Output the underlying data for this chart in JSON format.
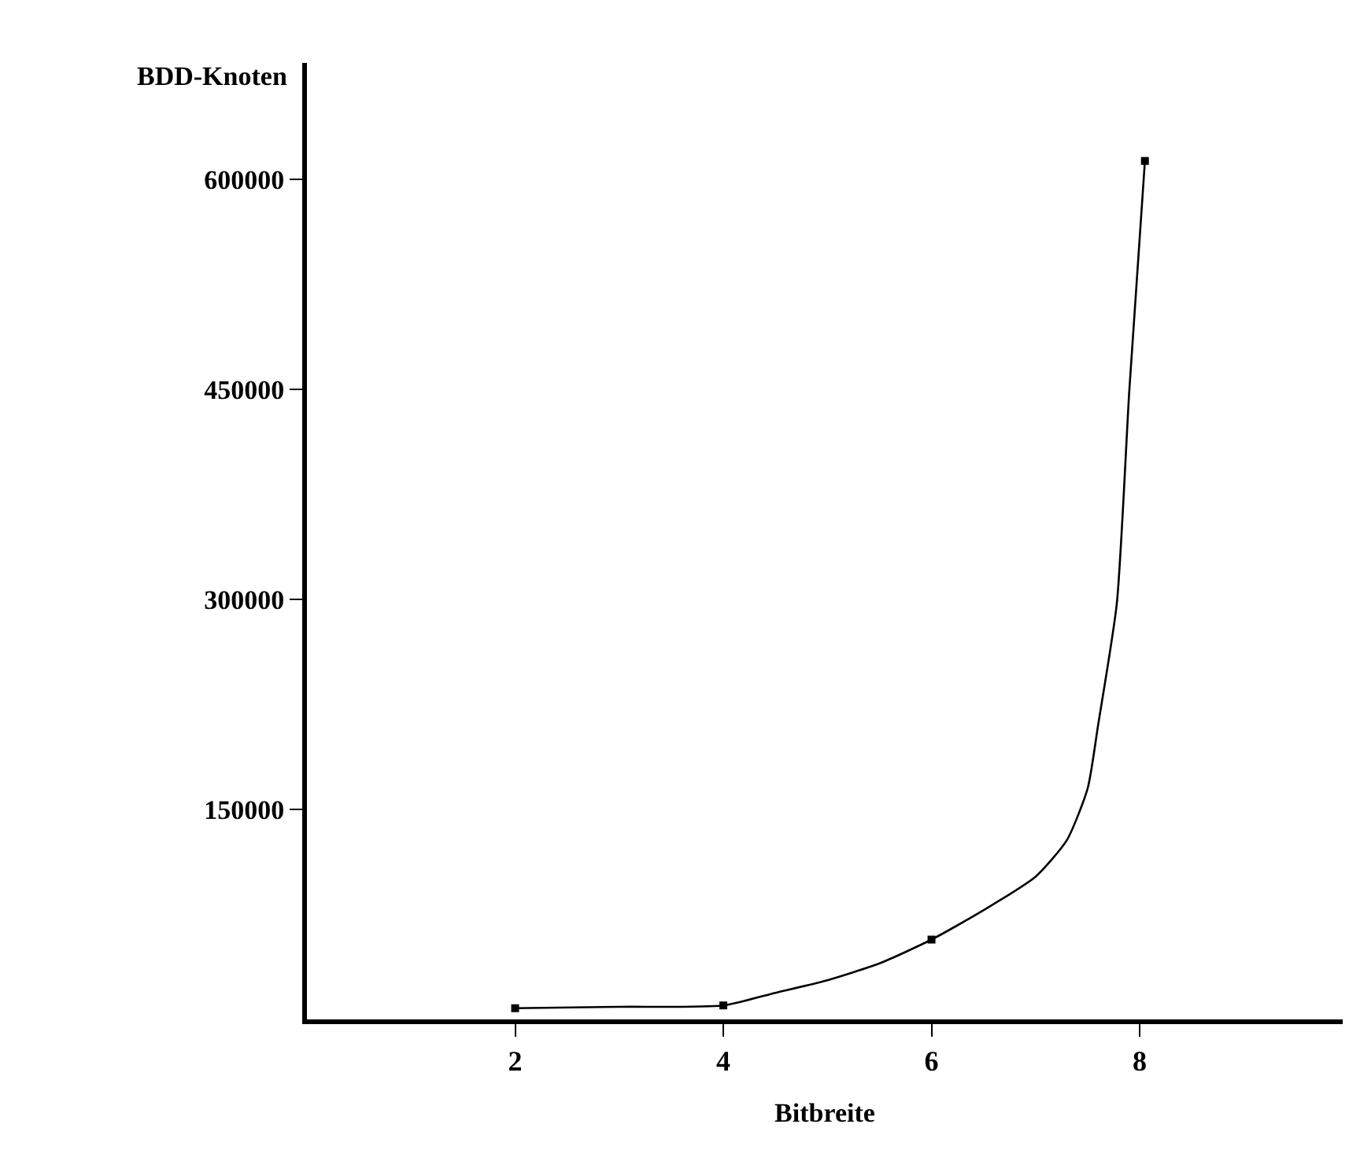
{
  "chart_data": {
    "type": "line",
    "xlabel": "Bitbreite",
    "ylabel": "BDD-Knoten",
    "xlim": [
      0,
      9.95
    ],
    "ylim": [
      0,
      683000
    ],
    "xticks": [
      2,
      4,
      6,
      8
    ],
    "yticks": [
      150000,
      300000,
      450000,
      600000
    ],
    "series": [
      {
        "color": "#000000",
        "marker": "none",
        "line_style": "solid",
        "x": [
          2,
          3,
          4,
          4.5,
          5,
          5.5,
          6,
          6.5,
          7,
          7.3,
          7.5,
          7.6,
          7.78,
          7.9,
          8.05
        ],
        "values": [
          8000,
          9000,
          10000,
          19000,
          28000,
          40000,
          57000,
          78000,
          102000,
          128000,
          165000,
          210000,
          297000,
          449000,
          613000
        ]
      },
      {
        "type": "scatter",
        "color": "#000000",
        "marker": "square",
        "x": [
          2,
          4,
          6,
          8.05
        ],
        "values": [
          8000,
          10000,
          57000,
          613000
        ]
      }
    ]
  }
}
